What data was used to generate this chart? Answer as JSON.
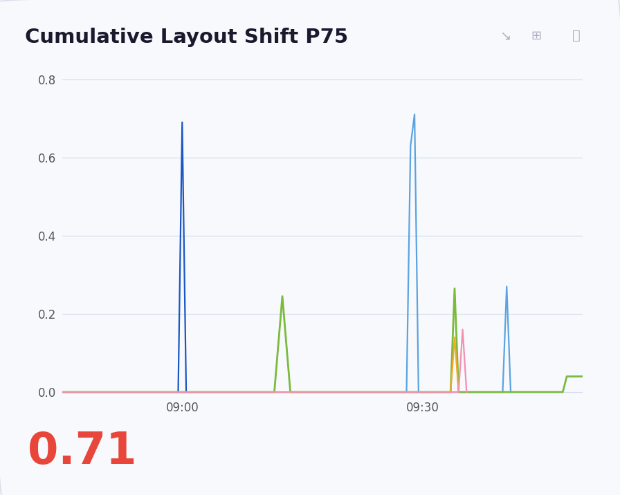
{
  "title": "Cumulative Layout Shift P75",
  "metric_value": "0.71",
  "metric_color": "#e8463a",
  "background_color": "#f8f9fc",
  "plot_bg_color": "#f8f9fc",
  "ylim": [
    -0.01,
    0.8
  ],
  "yticks": [
    0,
    0.2,
    0.4,
    0.6,
    0.8
  ],
  "xlim": [
    0,
    65
  ],
  "xtick_labels": [
    "09:00",
    "09:30"
  ],
  "xtick_positions": [
    15,
    45
  ],
  "grid_color": "#d0d8ea",
  "series": [
    {
      "name": "dark_blue",
      "color": "#1a56c4",
      "linewidth": 1.6,
      "points": [
        [
          14.5,
          0
        ],
        [
          15.0,
          0.69
        ],
        [
          15.5,
          0
        ]
      ]
    },
    {
      "name": "light_blue_1",
      "color": "#5ba3e0",
      "linewidth": 1.6,
      "points": [
        [
          0,
          0
        ],
        [
          43.0,
          0
        ],
        [
          43.5,
          0.63
        ],
        [
          44.0,
          0.71
        ],
        [
          44.5,
          0
        ],
        [
          55.0,
          0
        ],
        [
          55.5,
          0.27
        ],
        [
          56.0,
          0
        ]
      ]
    },
    {
      "name": "green",
      "color": "#7aba3c",
      "linewidth": 2.0,
      "points": [
        [
          0,
          0
        ],
        [
          26.0,
          0
        ],
        [
          26.5,
          0
        ],
        [
          27.5,
          0.245
        ],
        [
          28.5,
          0
        ],
        [
          40.0,
          0
        ],
        [
          48.5,
          0
        ],
        [
          49.0,
          0.265
        ],
        [
          49.5,
          0
        ],
        [
          62.5,
          0
        ],
        [
          63.0,
          0.04
        ],
        [
          65,
          0.04
        ]
      ]
    },
    {
      "name": "orange",
      "color": "#f5a623",
      "linewidth": 1.6,
      "points": [
        [
          0,
          0
        ],
        [
          48.5,
          0
        ],
        [
          49.0,
          0.14
        ],
        [
          49.5,
          0
        ]
      ]
    },
    {
      "name": "pink",
      "color": "#f48fb1",
      "linewidth": 1.6,
      "points": [
        [
          0,
          0
        ],
        [
          49.5,
          0
        ],
        [
          50.0,
          0.16
        ],
        [
          50.5,
          0
        ]
      ]
    }
  ]
}
